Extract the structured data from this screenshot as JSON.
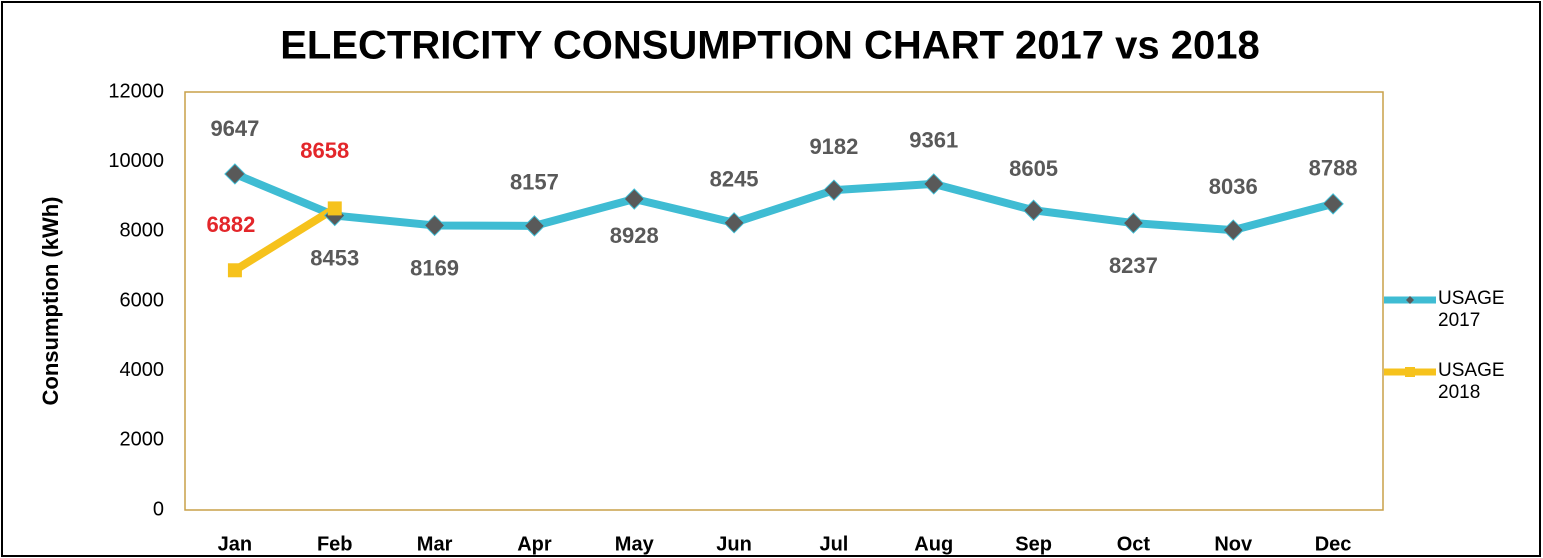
{
  "chart_data": {
    "type": "line",
    "title": "ELECTRICITY CONSUMPTION CHART  2017 vs  2018",
    "y_label": "Consumption (kWh)",
    "categories": [
      "Jan",
      "Feb",
      "Mar",
      "Apr",
      "May",
      "Jun",
      "Jul",
      "Aug",
      "Sep",
      "Oct",
      "Nov",
      "Dec"
    ],
    "series": [
      {
        "name": "USAGE 2017",
        "color": "#3fbcd3",
        "marker": "diamond",
        "marker_color": "#595959",
        "label_color": "#595959",
        "values": [
          9647,
          8453,
          8169,
          8157,
          8928,
          8245,
          9182,
          9361,
          8605,
          8237,
          8036,
          8788
        ]
      },
      {
        "name": "USAGE 2018",
        "color": "#f6c21c",
        "marker": "square",
        "marker_color": "#f6c21c",
        "label_color": "#e3262a",
        "values": [
          6882,
          8658,
          null,
          null,
          null,
          null,
          null,
          null,
          null,
          null,
          null,
          null
        ]
      }
    ],
    "ylim": [
      0,
      12000
    ],
    "yticks": [
      0,
      2000,
      4000,
      6000,
      8000,
      10000,
      12000
    ],
    "grid": false,
    "legend": "right"
  }
}
